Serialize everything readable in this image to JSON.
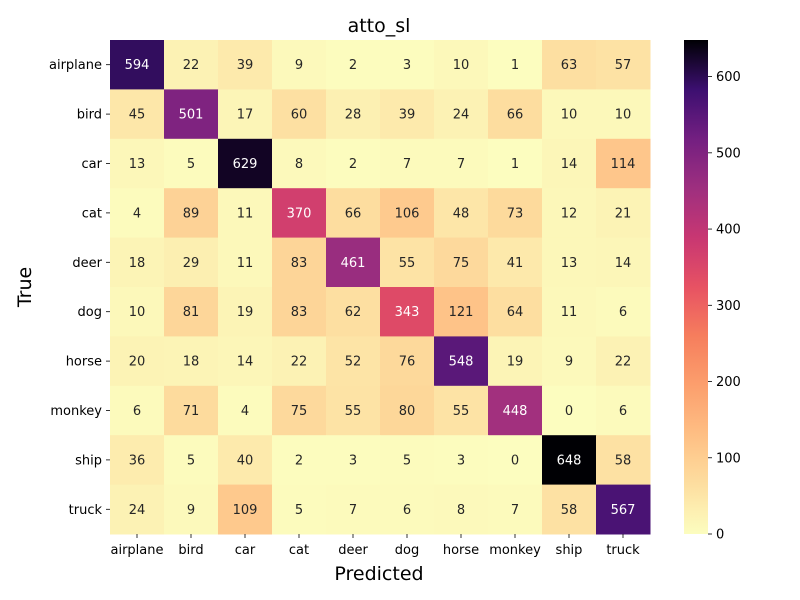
{
  "chart_data": {
    "type": "heatmap",
    "title": "atto_sl",
    "xlabel": "Predicted",
    "ylabel": "True",
    "x_categories": [
      "airplane",
      "bird",
      "car",
      "cat",
      "deer",
      "dog",
      "horse",
      "monkey",
      "ship",
      "truck"
    ],
    "y_categories": [
      "airplane",
      "bird",
      "car",
      "cat",
      "deer",
      "dog",
      "horse",
      "monkey",
      "ship",
      "truck"
    ],
    "values": [
      [
        594,
        22,
        39,
        9,
        2,
        3,
        10,
        1,
        63,
        57
      ],
      [
        45,
        501,
        17,
        60,
        28,
        39,
        24,
        66,
        10,
        10
      ],
      [
        13,
        5,
        629,
        8,
        2,
        7,
        7,
        1,
        14,
        114
      ],
      [
        4,
        89,
        11,
        370,
        66,
        106,
        48,
        73,
        12,
        21
      ],
      [
        18,
        29,
        11,
        83,
        461,
        55,
        75,
        41,
        13,
        14
      ],
      [
        10,
        81,
        19,
        83,
        62,
        343,
        121,
        64,
        11,
        6
      ],
      [
        20,
        18,
        14,
        22,
        52,
        76,
        548,
        19,
        9,
        22
      ],
      [
        6,
        71,
        4,
        75,
        55,
        80,
        55,
        448,
        0,
        6
      ],
      [
        36,
        5,
        40,
        2,
        3,
        5,
        3,
        0,
        648,
        58
      ],
      [
        24,
        9,
        109,
        5,
        7,
        6,
        8,
        7,
        58,
        567
      ]
    ],
    "colormap": "magma_r",
    "colorbar": {
      "range": [
        0,
        648
      ],
      "ticks": [
        0,
        100,
        200,
        300,
        400,
        500,
        600
      ]
    },
    "grid": false
  }
}
